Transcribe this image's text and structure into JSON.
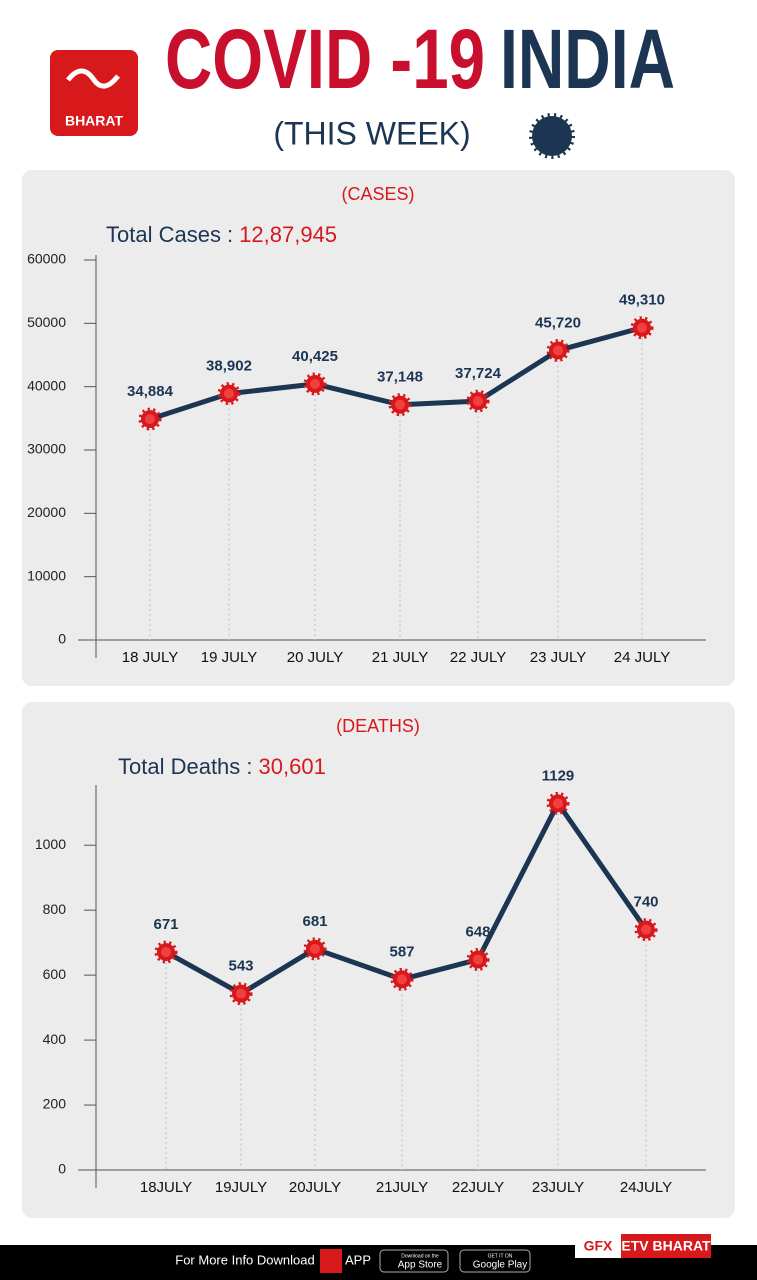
{
  "header": {
    "title_red": "COVID -19",
    "title_blue": "INDIA",
    "subtitle": "(THIS WEEK)",
    "logo_text": "BHARAT"
  },
  "chart_data": [
    {
      "type": "line",
      "title": "(CASES)",
      "total_label": "Total Cases :",
      "total_value": "12,87,945",
      "categories": [
        "18 JULY",
        "19 JULY",
        "20 JULY",
        "21 JULY",
        "22 JULY",
        "23 JULY",
        "24 JULY"
      ],
      "values": [
        34884,
        38902,
        40425,
        37148,
        37724,
        45720,
        49310
      ],
      "value_labels": [
        "34,884",
        "38,902",
        "40,425",
        "37,148",
        "37,724",
        "45,720",
        "49,310"
      ],
      "color": "#1c3553",
      "marker_color": "#d7191c",
      "ylim": [
        0,
        60000
      ],
      "yticks": [
        0,
        10000,
        20000,
        30000,
        40000,
        50000,
        60000
      ]
    },
    {
      "type": "line",
      "title": "(DEATHS)",
      "total_label": "Total Deaths :",
      "total_value": "30,601",
      "categories": [
        "18JULY",
        "19JULY",
        "20JULY",
        "21JULY",
        "22JULY",
        "23JULY",
        "24JULY"
      ],
      "values": [
        671,
        543,
        681,
        587,
        648,
        1129,
        740
      ],
      "color": "#1c3553",
      "marker_color": "#d7191c",
      "ylim": [
        0,
        1170
      ],
      "yticks": [
        0,
        200,
        400,
        600,
        800,
        1000
      ]
    }
  ],
  "footer": {
    "info": "For More Info Download",
    "app": "APP",
    "appstore_small": "Download on the",
    "appstore": "App Store",
    "gplay_small": "GET IT ON",
    "gplay": "Google Play",
    "gfx": "GFX",
    "brand": "ETV BHARAT"
  }
}
